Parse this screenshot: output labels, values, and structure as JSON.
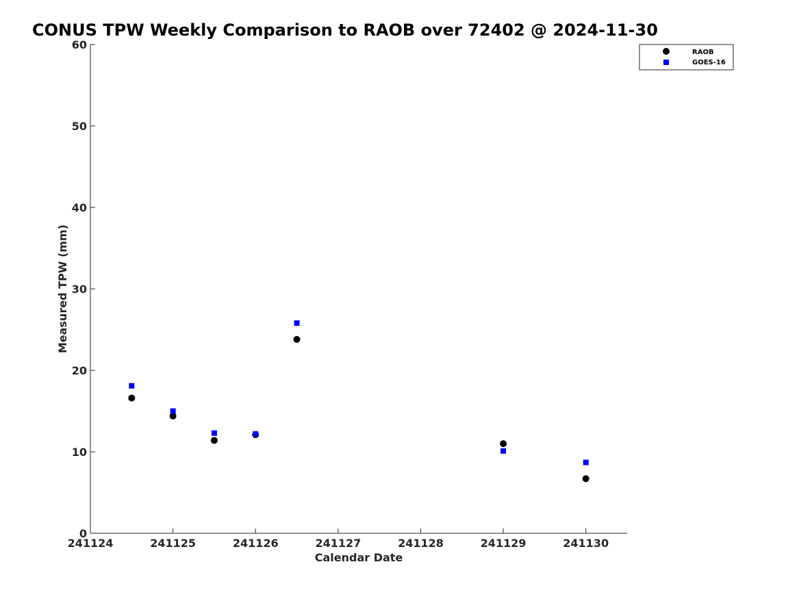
{
  "chart_data": {
    "type": "scatter",
    "title": "CONUS TPW Weekly Comparison to RAOB over 72402 @ 2024-11-30",
    "xlabel": "Calendar Date",
    "ylabel": "Measured TPW (mm)",
    "xlim": [
      "2024-11-24T00:00",
      "2024-11-30T12:00"
    ],
    "ylim": [
      0,
      60
    ],
    "x_ticks": [
      "2024-11-24",
      "2024-11-25",
      "2024-11-26",
      "2024-11-27",
      "2024-11-28",
      "2024-11-29",
      "2024-11-30"
    ],
    "x_tick_labels": [
      "241124",
      "241125",
      "241126",
      "241127",
      "241128",
      "241129",
      "241130"
    ],
    "y_ticks": [
      0,
      10,
      20,
      30,
      40,
      50,
      60
    ],
    "grid": false,
    "legend_position": "top-right",
    "series": [
      {
        "name": "RAOB",
        "marker": "circle",
        "color": "#000000",
        "x": [
          "2024-11-24T12:00",
          "2024-11-25T00:00",
          "2024-11-25T12:00",
          "2024-11-26T00:00",
          "2024-11-26T12:00",
          "2024-11-29T00:00",
          "2024-11-30T00:00"
        ],
        "y": [
          16.6,
          14.4,
          11.4,
          12.1,
          23.8,
          11.0,
          6.7
        ]
      },
      {
        "name": "GOES-16",
        "marker": "square",
        "color": "#0000ff",
        "x": [
          "2024-11-24T12:00",
          "2024-11-25T00:00",
          "2024-11-25T12:00",
          "2024-11-26T00:00",
          "2024-11-26T12:00",
          "2024-11-29T00:00",
          "2024-11-30T00:00"
        ],
        "y": [
          18.1,
          15.0,
          12.3,
          12.2,
          25.8,
          10.1,
          8.7
        ]
      }
    ]
  }
}
